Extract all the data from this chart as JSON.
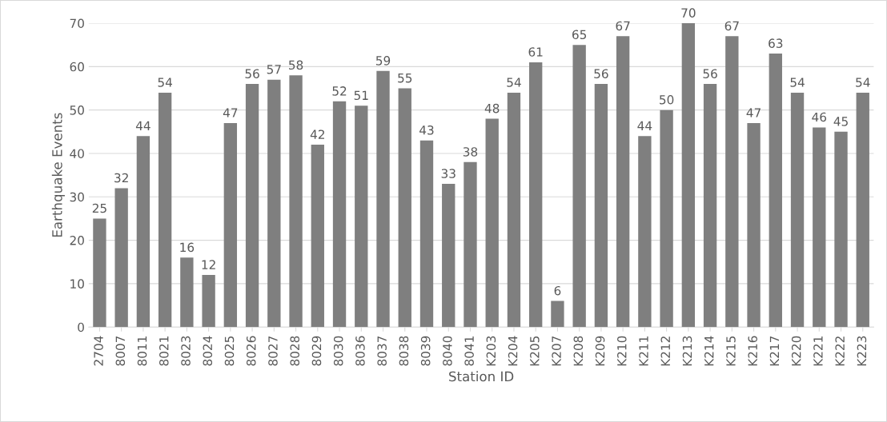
{
  "chart_data": {
    "type": "bar",
    "xlabel": "Station ID",
    "ylabel": "Earthquake Events",
    "categories": [
      "2704",
      "8007",
      "8011",
      "8021",
      "8023",
      "8024",
      "8025",
      "8026",
      "8027",
      "8028",
      "8029",
      "8030",
      "8036",
      "8037",
      "8038",
      "8039",
      "8040",
      "8041",
      "K203",
      "K204",
      "K205",
      "K207",
      "K208",
      "K209",
      "K210",
      "K211",
      "K212",
      "K213",
      "K214",
      "K215",
      "K216",
      "K217",
      "K220",
      "K221",
      "K222",
      "K223"
    ],
    "values": [
      25,
      32,
      44,
      54,
      16,
      12,
      47,
      56,
      57,
      58,
      42,
      52,
      51,
      59,
      55,
      43,
      33,
      38,
      48,
      54,
      61,
      6,
      65,
      56,
      67,
      44,
      50,
      70,
      56,
      67,
      47,
      63,
      54,
      46,
      45,
      54
    ],
    "color": "#7f7f7f",
    "ylim": [
      0,
      70
    ],
    "yticks": [
      0,
      10,
      20,
      30,
      40,
      50,
      60,
      70
    ],
    "grid": "y",
    "data_labels": true,
    "legend": false
  }
}
